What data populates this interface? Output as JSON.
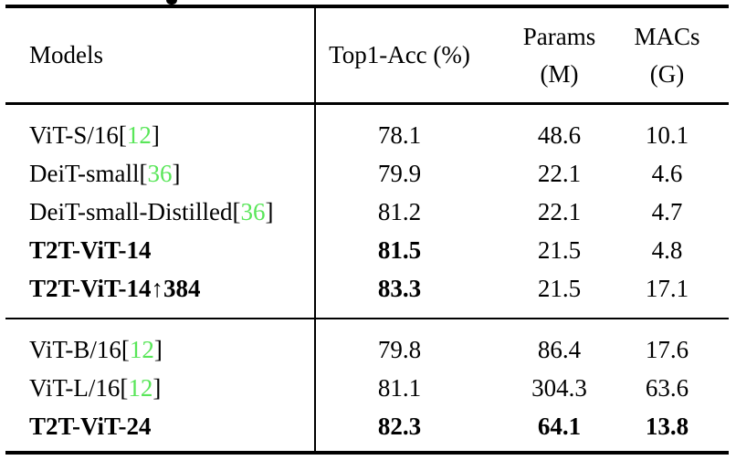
{
  "colors": {
    "citation_green": "#59e659",
    "text": "#000000",
    "rule": "#000000",
    "background": "#ffffff"
  },
  "caption_fragment": "partial glyph descender of cropped caption line above table",
  "table": {
    "header": {
      "models": "Models",
      "top1_acc": "Top1-Acc (%)",
      "params": "Params\n(M)",
      "macs": "MACs\n(G)"
    },
    "groups": [
      {
        "rows": [
          {
            "model": "ViT-S/16",
            "cite": "12",
            "values": [
              "78.1",
              "48.6",
              "10.1"
            ],
            "bold": [
              false,
              false,
              false,
              false
            ]
          },
          {
            "model": "DeiT-small",
            "cite": "36",
            "values": [
              "79.9",
              "22.1",
              "4.6"
            ],
            "bold": [
              false,
              false,
              false,
              false
            ]
          },
          {
            "model": "DeiT-small-Distilled",
            "cite": "36",
            "values": [
              "81.2",
              "22.1",
              "4.7"
            ],
            "bold": [
              false,
              false,
              false,
              false
            ]
          },
          {
            "model": "T2T-ViT-14",
            "cite": null,
            "values": [
              "81.5",
              "21.5",
              "4.8"
            ],
            "bold": [
              true,
              true,
              false,
              false
            ]
          },
          {
            "model": "T2T-ViT-14↑384",
            "cite": null,
            "values": [
              "83.3",
              "21.5",
              "17.1"
            ],
            "bold": [
              true,
              true,
              false,
              false
            ]
          }
        ]
      },
      {
        "rows": [
          {
            "model": "ViT-B/16",
            "cite": "12",
            "values": [
              "79.8",
              "86.4",
              "17.6"
            ],
            "bold": [
              false,
              false,
              false,
              false
            ]
          },
          {
            "model": "ViT-L/16",
            "cite": "12",
            "values": [
              "81.1",
              "304.3",
              "63.6"
            ],
            "bold": [
              false,
              false,
              false,
              false
            ]
          },
          {
            "model": "T2T-ViT-24",
            "cite": null,
            "values": [
              "82.3",
              "64.1",
              "13.8"
            ],
            "bold": [
              true,
              true,
              true,
              true
            ]
          }
        ]
      }
    ]
  }
}
